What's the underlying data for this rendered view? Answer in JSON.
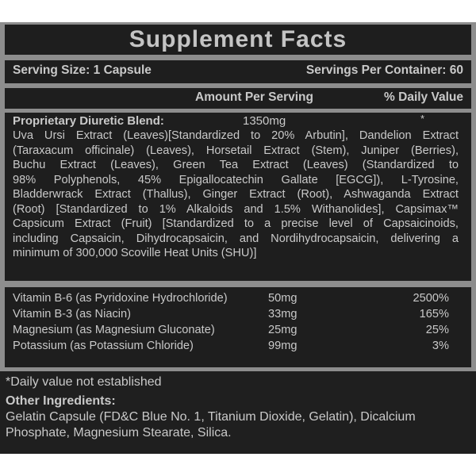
{
  "title": "Supplement Facts",
  "serving": {
    "size": "Serving Size: 1 Capsule",
    "per_container": "Servings Per Container: 60"
  },
  "header": {
    "amount": "Amount Per Serving",
    "daily_value": "% Daily Value"
  },
  "blend": {
    "name": "Proprietary Diuretic Blend:",
    "amount": "1350mg",
    "dv": "*",
    "lines": [
      "Uva Ursi Extract (Leaves)[Standardized to 20% Arbutin], Dandelion Extract",
      "(Taraxacum officinale) (Leaves), Horsetail Extract (Stem), Juniper (Berries),",
      "Buchu Extract (Leaves), Green Tea Extract (Leaves) (Standardized to",
      "98% Polyphenols, 45% Epigallocatechin Gallate [EGCG]), L-Tyrosine,",
      "Bladderwrack Extract (Thallus), Ginger Extract (Root), Ashwaganda Extract",
      "(Root) [Standardized to 1% Alkaloids and 1.5% Withanolides], Capsimax™",
      "Capsicum Extract (Fruit) [Standardized to a precise level of Capsaicinoids,",
      "including Capsaicin, Dihydrocapsaicin, and Nordihydrocapsaicin, delivering a",
      "minimum of 300,000 Scoville Heat Units (SHU)]"
    ]
  },
  "vitamins": [
    {
      "name": "Vitamin B-6 (as Pyridoxine Hydrochloride)",
      "amount": "50mg",
      "dv": "2500%"
    },
    {
      "name": "Vitamin B-3 (as Niacin)",
      "amount": "33mg",
      "dv": "165%"
    },
    {
      "name": "Magnesium (as Magnesium Gluconate)",
      "amount": "25mg",
      "dv": "25%"
    },
    {
      "name": "Potassium (as Potassium Chloride)",
      "amount": "99mg",
      "dv": "3%"
    }
  ],
  "footnote": "*Daily value not established",
  "other": {
    "label": "Other Ingredients:",
    "lines": [
      "Gelatin Capsule (FD&C Blue No. 1, Titanium Dioxide, Gelatin), Dicalcium",
      "Phosphate, Magnesium Stearate, Silica."
    ]
  }
}
